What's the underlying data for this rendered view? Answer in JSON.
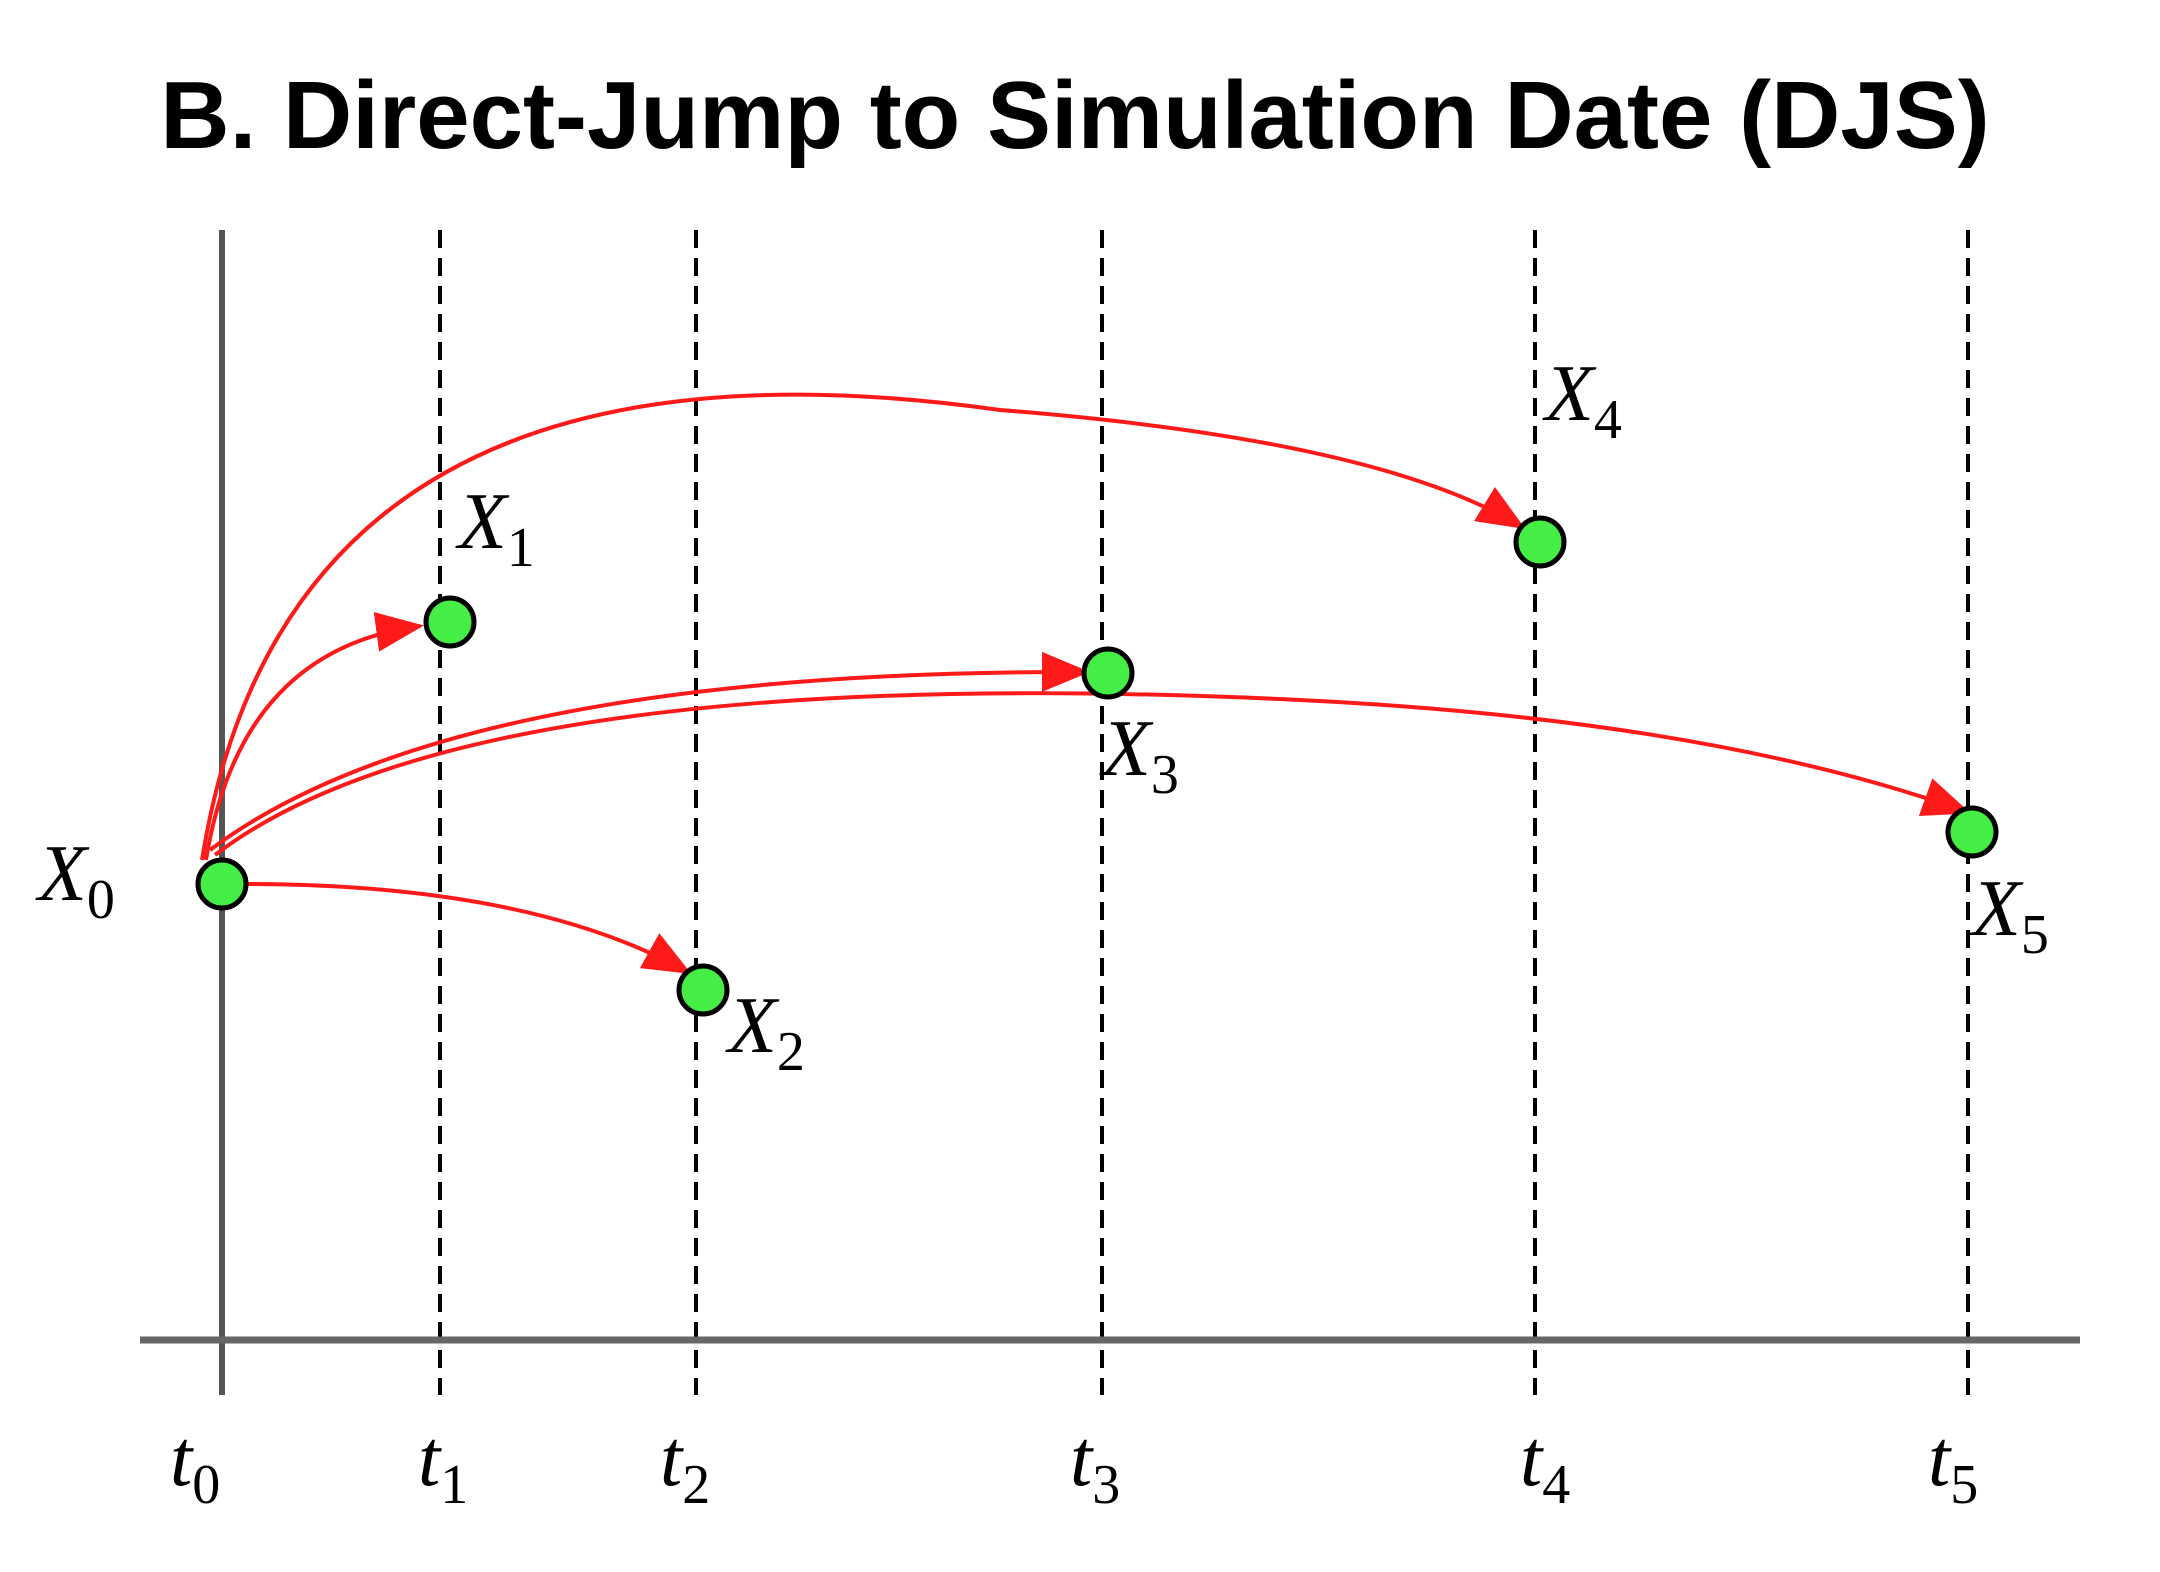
{
  "title": "B. Direct-Jump to Simulation Date (DJS)",
  "colors": {
    "arrow": "#ff1a1a",
    "node": "#44ee44",
    "axis": "#666666"
  },
  "times": [
    {
      "id": "t0",
      "main": "t",
      "sub": "0"
    },
    {
      "id": "t1",
      "main": "t",
      "sub": "1"
    },
    {
      "id": "t2",
      "main": "t",
      "sub": "2"
    },
    {
      "id": "t3",
      "main": "t",
      "sub": "3"
    },
    {
      "id": "t4",
      "main": "t",
      "sub": "4"
    },
    {
      "id": "t5",
      "main": "t",
      "sub": "5"
    }
  ],
  "nodes": [
    {
      "id": "x0",
      "main": "X",
      "sub": "0"
    },
    {
      "id": "x1",
      "main": "X",
      "sub": "1"
    },
    {
      "id": "x2",
      "main": "X",
      "sub": "2"
    },
    {
      "id": "x3",
      "main": "X",
      "sub": "3"
    },
    {
      "id": "x4",
      "main": "X",
      "sub": "4"
    },
    {
      "id": "x5",
      "main": "X",
      "sub": "5"
    }
  ],
  "jumps": [
    {
      "from": "x0",
      "to": "x1"
    },
    {
      "from": "x0",
      "to": "x2"
    },
    {
      "from": "x0",
      "to": "x3"
    },
    {
      "from": "x0",
      "to": "x4"
    },
    {
      "from": "x0",
      "to": "x5"
    }
  ]
}
